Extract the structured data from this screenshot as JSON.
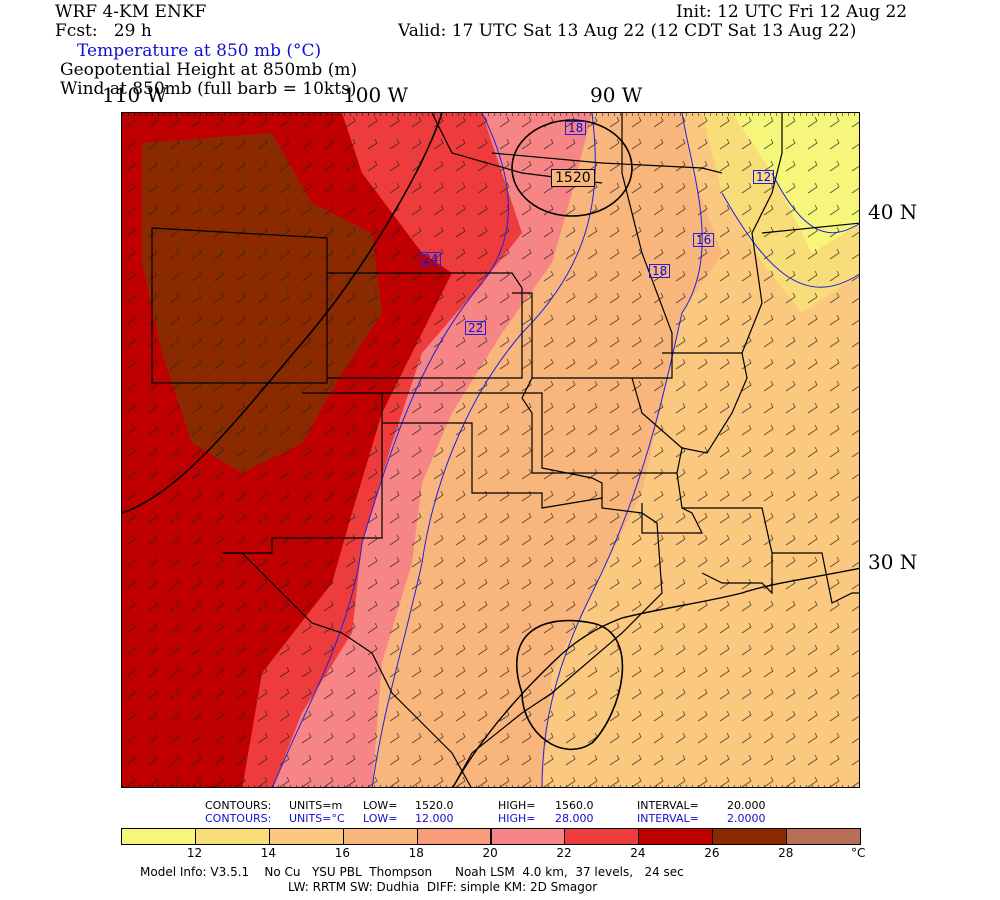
{
  "header": {
    "model": "WRF 4-KM ENKF",
    "forecast": "Fcst:   29 h",
    "init": "Init: 12 UTC Fri 12 Aug 22",
    "valid": "Valid: 17 UTC Sat 13 Aug 22 (12 CDT Sat 13 Aug 22)",
    "field1": "Temperature at 850 mb (°C)",
    "field2": "Geopotential Height at 850mb (m)",
    "field3": "Wind at 850mb (full barb = 10kts)"
  },
  "axes": {
    "lon_labels": [
      "110 W",
      "100 W",
      "90 W"
    ],
    "lat_labels": [
      "40 N",
      "30 N"
    ]
  },
  "map_labels": {
    "height_contours": [
      "1520"
    ],
    "temp_contours": [
      "18",
      "12",
      "16",
      "18",
      "24",
      "22"
    ]
  },
  "contour_info": {
    "height": {
      "label": "CONTOURS:",
      "units": "UNITS=m",
      "low": "LOW=",
      "low_val": "1520.0",
      "high": "HIGH=",
      "high_val": "1560.0",
      "interval": "INTERVAL=",
      "interval_val": "20.000"
    },
    "temp": {
      "label": "CONTOURS:",
      "units": "UNITS=°C",
      "low": "LOW=",
      "low_val": "12.000",
      "high": "HIGH=",
      "high_val": "28.000",
      "interval": "INTERVAL=",
      "interval_val": "2.0000"
    }
  },
  "colorbar": {
    "labels": [
      "12",
      "14",
      "16",
      "18",
      "20",
      "22",
      "24",
      "26",
      "28"
    ],
    "unit": "°C",
    "colors": [
      "#f6f67a",
      "#f8dd78",
      "#fbc880",
      "#f9b67c",
      "#f89d7c",
      "#f78585",
      "#ee3b3b",
      "#c00000",
      "#8b2a00",
      "#b86e57"
    ]
  },
  "footer": {
    "line1": "Model Info: V3.5.1    No Cu   YSU PBL  Thompson      Noah LSM  4.0 km,  37 levels,   24 sec",
    "line2": "LW: RRTM SW: Dudhia  DIFF: simple KM: 2D Smagor"
  }
}
